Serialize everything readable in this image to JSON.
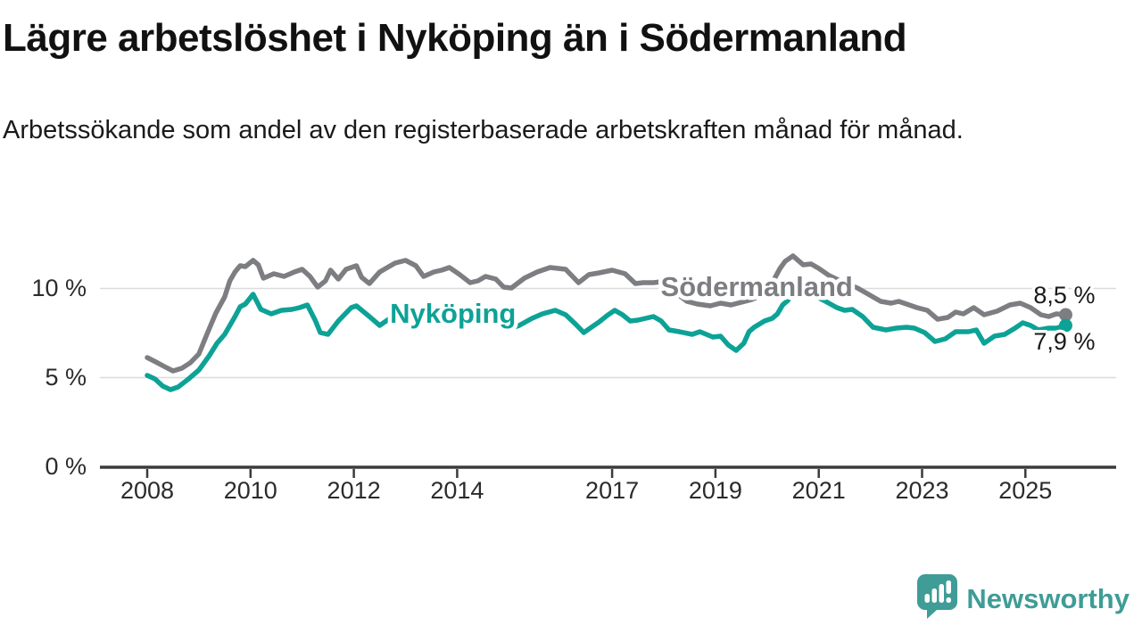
{
  "header": {
    "title": "Lägre arbetslöshet i Nyköping än i Södermanland",
    "subtitle": "Arbetssökande som andel av den registerbaserade arbetskraften månad för månad."
  },
  "footer": {
    "brand": "Newsworthy"
  },
  "colors": {
    "nykoping_teal": "#0da296",
    "sodermanland_gray": "#7d7e82",
    "grid": "#dcdcdc",
    "axis": "#3b3b3b",
    "text": "#1a1a1a",
    "logo_teal": "#3f9c96"
  },
  "chart_data": {
    "type": "line",
    "title": "Lägre arbetslöshet i Nyköping än i Södermanland",
    "xlabel": "",
    "ylabel": "Arbetssökande som andel av den registerbaserade arbetskraften",
    "unit": "%",
    "xlim": [
      2008,
      2026
    ],
    "ylim": [
      0,
      12.4
    ],
    "grid": "horizontal",
    "legend_position": "inline-labels",
    "y_ticks": [
      {
        "value": 0,
        "label": "0 %"
      },
      {
        "value": 5,
        "label": "5 %"
      },
      {
        "value": 10,
        "label": "10 %"
      }
    ],
    "x_ticks": [
      {
        "year": 2008,
        "label": "2008"
      },
      {
        "year": 2010,
        "label": "2010"
      },
      {
        "year": 2012,
        "label": "2012"
      },
      {
        "year": 2014,
        "label": "2014"
      },
      {
        "year": 2017,
        "label": "2017"
      },
      {
        "year": 2019,
        "label": "2019"
      },
      {
        "year": 2021,
        "label": "2021"
      },
      {
        "year": 2023,
        "label": "2023"
      },
      {
        "year": 2025,
        "label": "2025"
      }
    ],
    "series": [
      {
        "name": "Södermanland",
        "color": "#7d7e82",
        "end_label": "8,5 %",
        "end_value": 8.5,
        "end_label_position": "above",
        "label_pos": {
          "x": 2019.8,
          "y": 10.05
        },
        "points": [
          [
            2008.0,
            6.1
          ],
          [
            2008.17,
            5.85
          ],
          [
            2008.33,
            5.6
          ],
          [
            2008.5,
            5.35
          ],
          [
            2008.67,
            5.5
          ],
          [
            2008.83,
            5.8
          ],
          [
            2009.0,
            6.3
          ],
          [
            2009.17,
            7.5
          ],
          [
            2009.33,
            8.6
          ],
          [
            2009.5,
            9.5
          ],
          [
            2009.6,
            10.4
          ],
          [
            2009.7,
            10.9
          ],
          [
            2009.8,
            11.25
          ],
          [
            2009.9,
            11.2
          ],
          [
            2010.05,
            11.55
          ],
          [
            2010.15,
            11.3
          ],
          [
            2010.25,
            10.55
          ],
          [
            2010.45,
            10.8
          ],
          [
            2010.65,
            10.65
          ],
          [
            2010.85,
            10.9
          ],
          [
            2011.0,
            11.05
          ],
          [
            2011.15,
            10.65
          ],
          [
            2011.3,
            10.05
          ],
          [
            2011.45,
            10.4
          ],
          [
            2011.55,
            11.0
          ],
          [
            2011.7,
            10.5
          ],
          [
            2011.85,
            11.05
          ],
          [
            2012.05,
            11.25
          ],
          [
            2012.15,
            10.6
          ],
          [
            2012.3,
            10.25
          ],
          [
            2012.5,
            10.9
          ],
          [
            2012.65,
            11.15
          ],
          [
            2012.8,
            11.4
          ],
          [
            2013.0,
            11.55
          ],
          [
            2013.2,
            11.25
          ],
          [
            2013.35,
            10.65
          ],
          [
            2013.55,
            10.9
          ],
          [
            2013.7,
            11.0
          ],
          [
            2013.85,
            11.15
          ],
          [
            2014.05,
            10.75
          ],
          [
            2014.25,
            10.3
          ],
          [
            2014.4,
            10.4
          ],
          [
            2014.55,
            10.65
          ],
          [
            2014.75,
            10.5
          ],
          [
            2014.9,
            10.05
          ],
          [
            2015.05,
            10.0
          ],
          [
            2015.3,
            10.55
          ],
          [
            2015.55,
            10.9
          ],
          [
            2015.8,
            11.15
          ],
          [
            2016.1,
            11.05
          ],
          [
            2016.35,
            10.3
          ],
          [
            2016.55,
            10.75
          ],
          [
            2016.75,
            10.85
          ],
          [
            2017.0,
            11.0
          ],
          [
            2017.25,
            10.8
          ],
          [
            2017.45,
            10.25
          ],
          [
            2017.6,
            10.3
          ],
          [
            2017.8,
            10.3
          ],
          [
            2017.95,
            10.35
          ],
          [
            2018.2,
            9.8
          ],
          [
            2018.45,
            9.25
          ],
          [
            2018.65,
            9.1
          ],
          [
            2018.9,
            9.0
          ],
          [
            2019.1,
            9.15
          ],
          [
            2019.3,
            9.05
          ],
          [
            2019.5,
            9.2
          ],
          [
            2019.7,
            9.35
          ],
          [
            2019.9,
            9.6
          ],
          [
            2020.1,
            10.3
          ],
          [
            2020.25,
            11.1
          ],
          [
            2020.35,
            11.5
          ],
          [
            2020.5,
            11.8
          ],
          [
            2020.6,
            11.55
          ],
          [
            2020.7,
            11.3
          ],
          [
            2020.85,
            11.35
          ],
          [
            2021.0,
            11.1
          ],
          [
            2021.2,
            10.7
          ],
          [
            2021.45,
            10.35
          ],
          [
            2021.75,
            10.0
          ],
          [
            2021.9,
            9.75
          ],
          [
            2022.2,
            9.25
          ],
          [
            2022.4,
            9.15
          ],
          [
            2022.55,
            9.25
          ],
          [
            2022.9,
            8.9
          ],
          [
            2023.1,
            8.75
          ],
          [
            2023.3,
            8.25
          ],
          [
            2023.5,
            8.35
          ],
          [
            2023.65,
            8.65
          ],
          [
            2023.8,
            8.55
          ],
          [
            2024.0,
            8.9
          ],
          [
            2024.2,
            8.5
          ],
          [
            2024.45,
            8.7
          ],
          [
            2024.7,
            9.05
          ],
          [
            2024.9,
            9.15
          ],
          [
            2025.1,
            8.9
          ],
          [
            2025.3,
            8.5
          ],
          [
            2025.45,
            8.4
          ],
          [
            2025.6,
            8.55
          ],
          [
            2025.78,
            8.5
          ]
        ]
      },
      {
        "name": "Nyköping",
        "color": "#0da296",
        "end_label": "7,9 %",
        "end_value": 7.9,
        "end_label_position": "below",
        "label_pos": {
          "x": 2013.92,
          "y": 8.55
        },
        "points": [
          [
            2008.0,
            5.1
          ],
          [
            2008.15,
            4.9
          ],
          [
            2008.3,
            4.5
          ],
          [
            2008.45,
            4.3
          ],
          [
            2008.6,
            4.45
          ],
          [
            2008.8,
            4.9
          ],
          [
            2009.0,
            5.4
          ],
          [
            2009.2,
            6.2
          ],
          [
            2009.35,
            6.9
          ],
          [
            2009.5,
            7.4
          ],
          [
            2009.6,
            7.9
          ],
          [
            2009.7,
            8.4
          ],
          [
            2009.8,
            8.95
          ],
          [
            2009.9,
            9.1
          ],
          [
            2010.05,
            9.65
          ],
          [
            2010.2,
            8.8
          ],
          [
            2010.4,
            8.55
          ],
          [
            2010.6,
            8.75
          ],
          [
            2010.8,
            8.8
          ],
          [
            2010.95,
            8.9
          ],
          [
            2011.1,
            9.05
          ],
          [
            2011.25,
            8.2
          ],
          [
            2011.35,
            7.5
          ],
          [
            2011.5,
            7.4
          ],
          [
            2011.7,
            8.15
          ],
          [
            2011.95,
            8.9
          ],
          [
            2012.05,
            9.0
          ],
          [
            2012.3,
            8.4
          ],
          [
            2012.5,
            7.9
          ],
          [
            2012.7,
            8.3
          ],
          [
            2012.9,
            8.55
          ],
          [
            2013.05,
            8.65
          ],
          [
            2013.3,
            8.3
          ],
          [
            2013.55,
            8.55
          ],
          [
            2013.8,
            8.6
          ],
          [
            2014.0,
            8.45
          ],
          [
            2014.15,
            8.6
          ],
          [
            2014.4,
            8.35
          ],
          [
            2014.6,
            8.1
          ],
          [
            2014.85,
            7.9
          ],
          [
            2015.05,
            7.75
          ],
          [
            2015.2,
            7.9
          ],
          [
            2015.45,
            8.3
          ],
          [
            2015.65,
            8.55
          ],
          [
            2015.9,
            8.75
          ],
          [
            2016.1,
            8.5
          ],
          [
            2016.3,
            7.95
          ],
          [
            2016.45,
            7.5
          ],
          [
            2016.6,
            7.8
          ],
          [
            2016.75,
            8.1
          ],
          [
            2016.9,
            8.45
          ],
          [
            2017.05,
            8.75
          ],
          [
            2017.2,
            8.5
          ],
          [
            2017.35,
            8.15
          ],
          [
            2017.5,
            8.2
          ],
          [
            2017.65,
            8.3
          ],
          [
            2017.8,
            8.4
          ],
          [
            2017.95,
            8.15
          ],
          [
            2018.1,
            7.65
          ],
          [
            2018.3,
            7.55
          ],
          [
            2018.55,
            7.4
          ],
          [
            2018.7,
            7.55
          ],
          [
            2018.95,
            7.25
          ],
          [
            2019.1,
            7.3
          ],
          [
            2019.25,
            6.8
          ],
          [
            2019.4,
            6.5
          ],
          [
            2019.55,
            6.9
          ],
          [
            2019.65,
            7.55
          ],
          [
            2019.75,
            7.8
          ],
          [
            2019.95,
            8.15
          ],
          [
            2020.1,
            8.3
          ],
          [
            2020.2,
            8.55
          ],
          [
            2020.3,
            9.05
          ],
          [
            2020.4,
            9.3
          ],
          [
            2020.5,
            9.7
          ],
          [
            2020.6,
            9.9
          ],
          [
            2020.75,
            9.85
          ],
          [
            2020.9,
            9.6
          ],
          [
            2021.1,
            9.3
          ],
          [
            2021.35,
            8.9
          ],
          [
            2021.5,
            8.75
          ],
          [
            2021.65,
            8.8
          ],
          [
            2021.85,
            8.4
          ],
          [
            2022.05,
            7.8
          ],
          [
            2022.3,
            7.65
          ],
          [
            2022.5,
            7.75
          ],
          [
            2022.7,
            7.8
          ],
          [
            2022.85,
            7.75
          ],
          [
            2023.05,
            7.5
          ],
          [
            2023.25,
            7.0
          ],
          [
            2023.45,
            7.15
          ],
          [
            2023.65,
            7.55
          ],
          [
            2023.9,
            7.55
          ],
          [
            2024.05,
            7.65
          ],
          [
            2024.2,
            6.9
          ],
          [
            2024.4,
            7.3
          ],
          [
            2024.6,
            7.4
          ],
          [
            2024.8,
            7.75
          ],
          [
            2024.95,
            8.05
          ],
          [
            2025.1,
            7.9
          ],
          [
            2025.25,
            7.65
          ],
          [
            2025.45,
            7.75
          ],
          [
            2025.6,
            7.75
          ],
          [
            2025.78,
            7.9
          ]
        ]
      }
    ]
  }
}
